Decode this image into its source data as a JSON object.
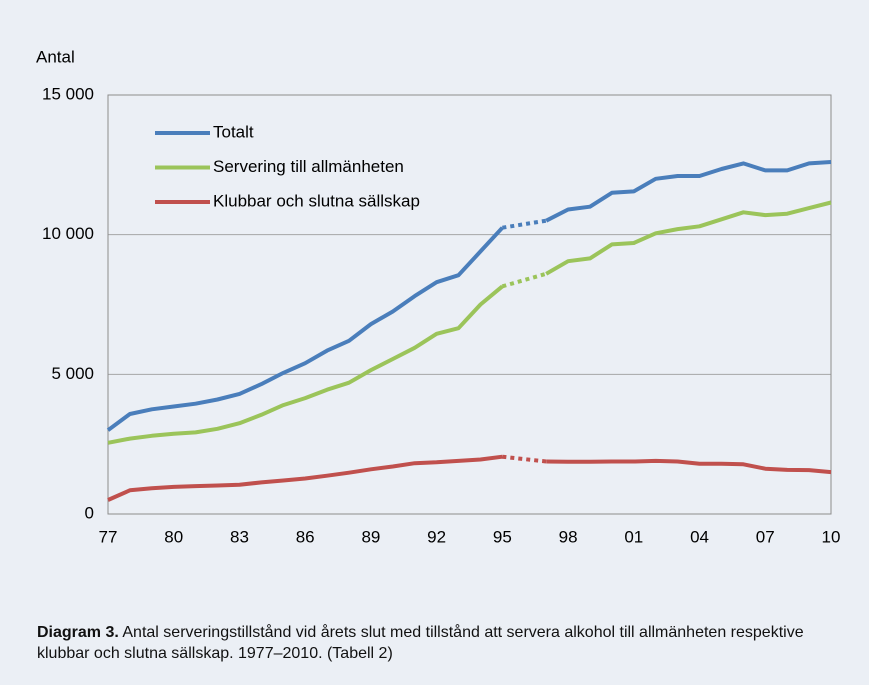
{
  "chart_data": {
    "type": "line",
    "y_label": "Antal",
    "categories": [
      "77",
      null,
      null,
      "80",
      null,
      null,
      "83",
      null,
      null,
      "86",
      null,
      null,
      "89",
      null,
      null,
      "92",
      null,
      null,
      "95",
      null,
      null,
      "98",
      null,
      null,
      "01",
      null,
      null,
      "04",
      null,
      null,
      "07",
      null,
      null,
      "10"
    ],
    "series": [
      {
        "name": "Totalt",
        "color": "#4a7ebb",
        "values": [
          3000,
          3580,
          3750,
          3850,
          3950,
          4100,
          4300,
          4650,
          5050,
          5400,
          5850,
          6200,
          6800,
          7250,
          7800,
          8300,
          8550,
          9400,
          10250,
          null,
          10500,
          10900,
          11000,
          11500,
          11550,
          12000,
          12100,
          12100,
          12350,
          12550,
          12300,
          12300,
          12550,
          12600
        ]
      },
      {
        "name": "Servering till allmänheten",
        "color": "#9bc45a",
        "values": [
          2550,
          2700,
          2800,
          2870,
          2920,
          3050,
          3250,
          3550,
          3900,
          4150,
          4450,
          4700,
          5150,
          5550,
          5950,
          6450,
          6650,
          7500,
          8150,
          null,
          8600,
          9050,
          9150,
          9650,
          9700,
          10050,
          10200,
          10300,
          10550,
          10800,
          10700,
          10750,
          10950,
          11150
        ]
      },
      {
        "name": "Klubbar och slutna sällskap",
        "color": "#c0504d",
        "values": [
          500,
          850,
          920,
          970,
          1000,
          1020,
          1050,
          1130,
          1200,
          1270,
          1370,
          1480,
          1600,
          1700,
          1820,
          1850,
          1900,
          1950,
          2050,
          null,
          1880,
          1870,
          1870,
          1880,
          1880,
          1900,
          1880,
          1800,
          1800,
          1780,
          1620,
          1580,
          1570,
          1500
        ]
      }
    ],
    "ylim": [
      0,
      15000
    ],
    "yticks": [
      0,
      {
        "value": 5000,
        "label": "5 000"
      },
      {
        "value": 10000,
        "label": "10 000"
      },
      {
        "value": 15000,
        "label": "15 000"
      }
    ],
    "grid": true,
    "legend": "top-left",
    "caption_label": "Diagram 3.",
    "caption_text": "Antal serveringstillstånd vid årets slut med tillstånd att servera alkohol till allmänheten respektive klubbar och slutna sällskap. 1977–2010. (Tabell 2)"
  }
}
